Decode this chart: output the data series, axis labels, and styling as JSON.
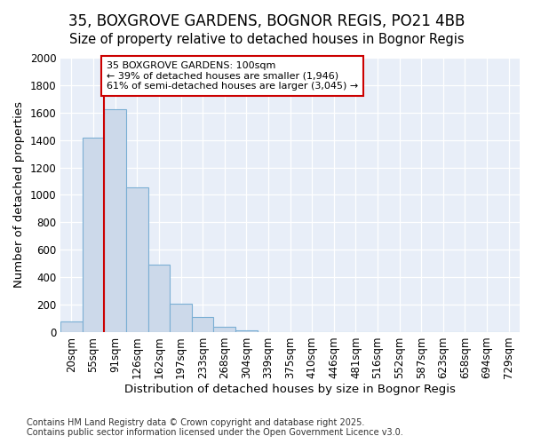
{
  "title_line1": "35, BOXGROVE GARDENS, BOGNOR REGIS, PO21 4BB",
  "title_line2": "Size of property relative to detached houses in Bognor Regis",
  "xlabel": "Distribution of detached houses by size in Bognor Regis",
  "ylabel": "Number of detached properties",
  "bin_labels": [
    "20sqm",
    "55sqm",
    "91sqm",
    "126sqm",
    "162sqm",
    "197sqm",
    "233sqm",
    "268sqm",
    "304sqm",
    "339sqm",
    "375sqm",
    "410sqm",
    "446sqm",
    "481sqm",
    "516sqm",
    "552sqm",
    "587sqm",
    "623sqm",
    "658sqm",
    "694sqm",
    "729sqm"
  ],
  "bar_heights": [
    80,
    1420,
    1625,
    1055,
    490,
    205,
    110,
    40,
    15,
    0,
    0,
    0,
    0,
    0,
    0,
    0,
    0,
    0,
    0,
    0,
    0
  ],
  "bar_color": "#ccd9ea",
  "bar_edge_color": "#7bafd4",
  "annotation_text": "35 BOXGROVE GARDENS: 100sqm\n← 39% of detached houses are smaller (1,946)\n61% of semi-detached houses are larger (3,045) →",
  "annotation_box_color": "#ffffff",
  "annotation_box_edge": "#cc0000",
  "vline_color": "#cc0000",
  "footer_line1": "Contains HM Land Registry data © Crown copyright and database right 2025.",
  "footer_line2": "Contains public sector information licensed under the Open Government Licence v3.0.",
  "ylim": [
    0,
    2000
  ],
  "yticks": [
    0,
    200,
    400,
    600,
    800,
    1000,
    1200,
    1400,
    1600,
    1800,
    2000
  ],
  "bg_color": "#ffffff",
  "plot_bg_color": "#e8eef8",
  "grid_color": "#ffffff",
  "title_fontsize": 12,
  "subtitle_fontsize": 10.5,
  "axis_label_fontsize": 9.5,
  "tick_fontsize": 8.5,
  "footer_fontsize": 7,
  "annotation_fontsize": 8
}
